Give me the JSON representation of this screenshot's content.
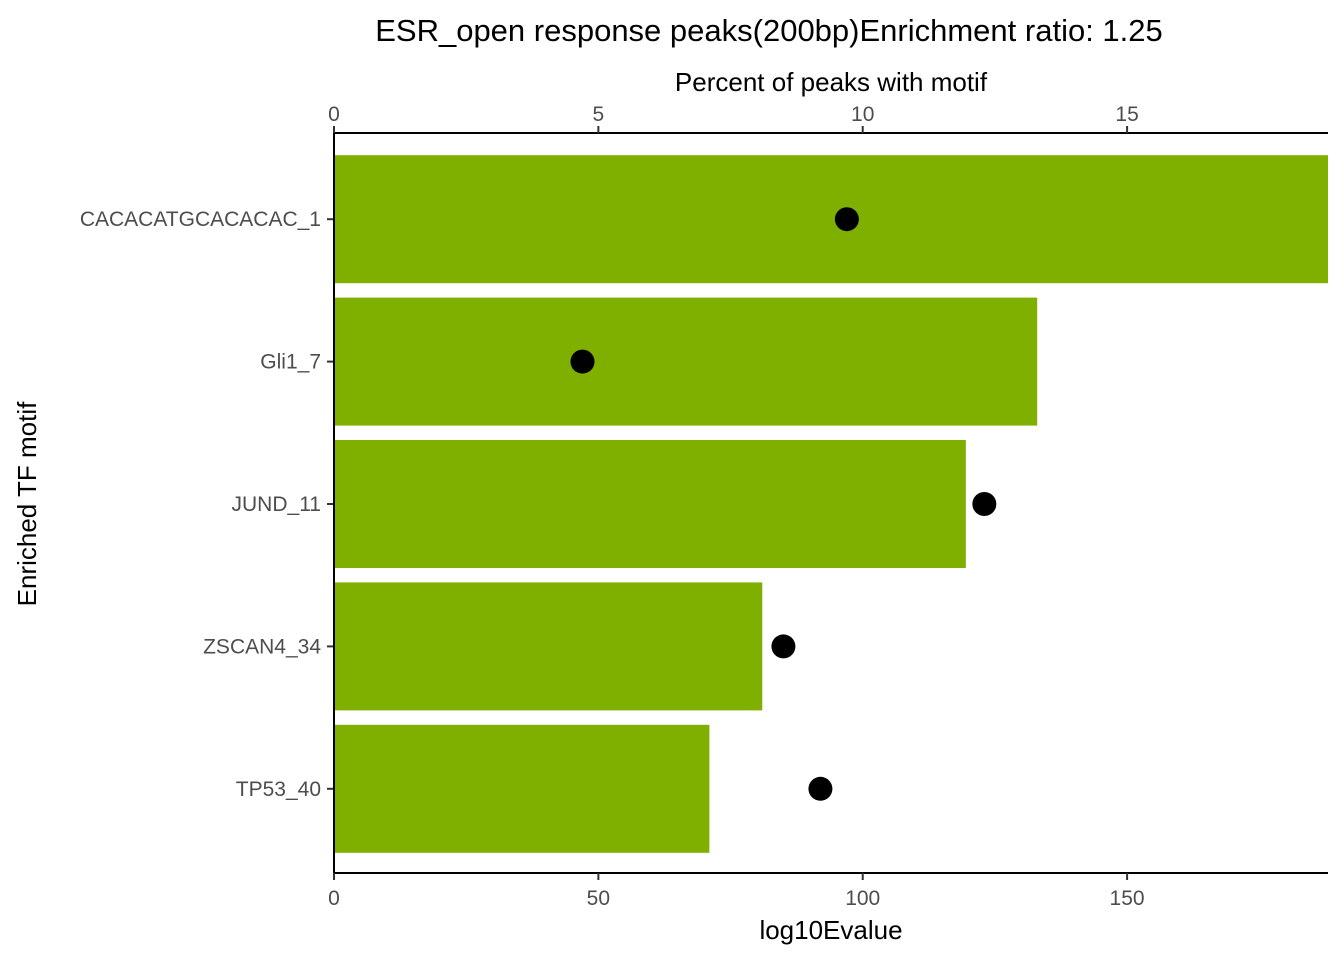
{
  "chart_data": {
    "type": "bar",
    "title": "ESR_open response peaks(200bp)Enrichment ratio: 1.25",
    "xlabel": "log10Evalue",
    "x2label": "Percent of peaks with motif",
    "ylabel": "Enriched TF motif",
    "categories": [
      "CACACATGCACACAC_1",
      "Gli1_7",
      "JUND_11",
      "ZSCAN4_34",
      "TP53_40"
    ],
    "xlim": [
      0,
      188
    ],
    "x_ticks": [
      0,
      50,
      100,
      150
    ],
    "x2lim": [
      0,
      18.8
    ],
    "x2_ticks": [
      0,
      5,
      10,
      15
    ],
    "series": [
      {
        "type": "bar",
        "axis": "bottom",
        "values": [
          188,
          133,
          119.5,
          81,
          71
        ]
      },
      {
        "type": "point",
        "axis": "top",
        "values": [
          9.7,
          4.7,
          12.3,
          8.5,
          9.2
        ]
      }
    ],
    "bar_color": "#7fb000",
    "point_color": "#000000",
    "grid": false,
    "legend": "none"
  }
}
